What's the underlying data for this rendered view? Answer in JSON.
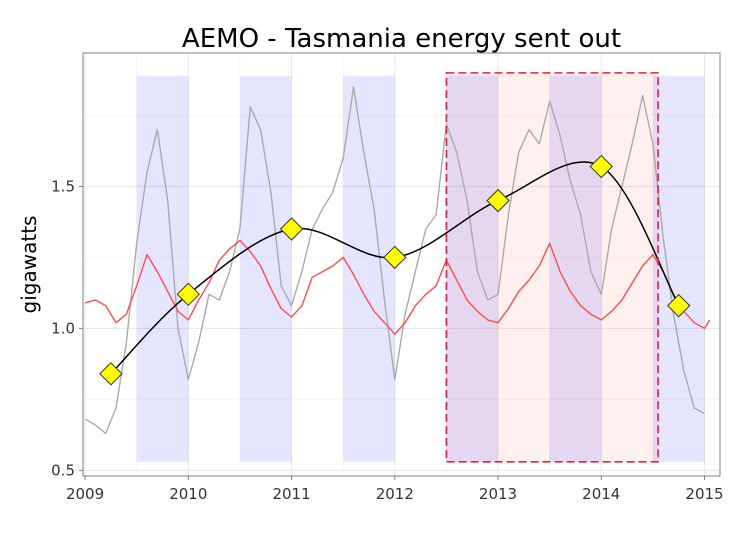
{
  "chart_data": {
    "type": "line",
    "title": "AEMO - Tasmania energy sent out",
    "xlabel": "",
    "ylabel": "gigawatts",
    "xlim": [
      2008.98,
      2015.15
    ],
    "ylim": [
      0.48,
      1.97
    ],
    "x_ticks": [
      2009,
      2010,
      2011,
      2012,
      2013,
      2014,
      2015
    ],
    "y_ticks": [
      0.5,
      1.0,
      1.5
    ],
    "y_tick_labels": [
      "0.5",
      "1.0",
      "1.5"
    ],
    "grid": true,
    "legend": "none",
    "shaded_periods": [
      {
        "start": 2009.5,
        "end": 2010.0
      },
      {
        "start": 2010.5,
        "end": 2011.0
      },
      {
        "start": 2011.5,
        "end": 2012.0
      },
      {
        "start": 2012.5,
        "end": 2013.0
      },
      {
        "start": 2013.5,
        "end": 2014.0
      },
      {
        "start": 2014.5,
        "end": 2015.0
      }
    ],
    "highlight_region": {
      "x": [
        2012.5,
        2014.55
      ],
      "y": [
        0.53,
        1.9
      ]
    },
    "series": [
      {
        "color": "#ff4d4d",
        "x": [
          2009.0,
          2009.1,
          2009.2,
          2009.3,
          2009.4,
          2009.5,
          2009.6,
          2009.7,
          2009.8,
          2009.9,
          2010.0,
          2010.1,
          2010.2,
          2010.3,
          2010.4,
          2010.5,
          2010.6,
          2010.7,
          2010.8,
          2010.9,
          2011.0,
          2011.1,
          2011.2,
          2011.3,
          2011.4,
          2011.5,
          2011.6,
          2011.7,
          2011.8,
          2011.9,
          2012.0,
          2012.1,
          2012.2,
          2012.3,
          2012.4,
          2012.5,
          2012.6,
          2012.7,
          2012.8,
          2012.9,
          2013.0,
          2013.1,
          2013.2,
          2013.3,
          2013.4,
          2013.5,
          2013.6,
          2013.7,
          2013.8,
          2013.9,
          2014.0,
          2014.1,
          2014.2,
          2014.3,
          2014.4,
          2014.5,
          2014.6,
          2014.7,
          2014.8,
          2014.9,
          2015.0,
          2015.05
        ],
        "values": [
          1.09,
          1.1,
          1.08,
          1.02,
          1.05,
          1.15,
          1.26,
          1.2,
          1.13,
          1.06,
          1.03,
          1.1,
          1.16,
          1.24,
          1.28,
          1.31,
          1.27,
          1.22,
          1.14,
          1.07,
          1.04,
          1.08,
          1.18,
          1.2,
          1.22,
          1.25,
          1.19,
          1.12,
          1.06,
          1.02,
          0.98,
          1.02,
          1.08,
          1.12,
          1.15,
          1.24,
          1.17,
          1.1,
          1.06,
          1.03,
          1.02,
          1.07,
          1.13,
          1.17,
          1.22,
          1.3,
          1.2,
          1.13,
          1.08,
          1.05,
          1.03,
          1.06,
          1.1,
          1.16,
          1.22,
          1.26,
          1.2,
          1.12,
          1.06,
          1.02,
          1.0,
          1.03
        ]
      },
      {
        "color": "#aaaaaa",
        "x": [
          2009.0,
          2009.1,
          2009.2,
          2009.3,
          2009.4,
          2009.5,
          2009.6,
          2009.7,
          2009.8,
          2009.9,
          2010.0,
          2010.1,
          2010.2,
          2010.3,
          2010.4,
          2010.5,
          2010.6,
          2010.7,
          2010.8,
          2010.9,
          2011.0,
          2011.1,
          2011.2,
          2011.3,
          2011.4,
          2011.5,
          2011.6,
          2011.7,
          2011.8,
          2011.9,
          2012.0,
          2012.1,
          2012.2,
          2012.3,
          2012.4,
          2012.5,
          2012.6,
          2012.7,
          2012.8,
          2012.9,
          2013.0,
          2013.1,
          2013.2,
          2013.3,
          2013.4,
          2013.5,
          2013.6,
          2013.7,
          2013.8,
          2013.9,
          2014.0,
          2014.1,
          2014.2,
          2014.3,
          2014.4,
          2014.5,
          2014.6,
          2014.7,
          2014.8,
          2014.9,
          2015.0
        ],
        "values": [
          0.68,
          0.66,
          0.63,
          0.72,
          0.95,
          1.3,
          1.55,
          1.7,
          1.45,
          1.0,
          0.82,
          0.95,
          1.12,
          1.1,
          1.2,
          1.35,
          1.78,
          1.7,
          1.48,
          1.15,
          1.08,
          1.2,
          1.35,
          1.42,
          1.48,
          1.6,
          1.85,
          1.62,
          1.42,
          1.1,
          0.82,
          1.05,
          1.2,
          1.35,
          1.4,
          1.72,
          1.62,
          1.45,
          1.2,
          1.1,
          1.12,
          1.4,
          1.62,
          1.7,
          1.65,
          1.8,
          1.68,
          1.52,
          1.4,
          1.2,
          1.12,
          1.35,
          1.5,
          1.65,
          1.82,
          1.65,
          1.32,
          1.05,
          0.85,
          0.72,
          0.7
        ]
      },
      {
        "color": "#000000",
        "x": [
          2009.25,
          2010.0,
          2011.0,
          2012.0,
          2013.0,
          2014.0,
          2014.75
        ],
        "values": [
          0.84,
          1.12,
          1.35,
          1.25,
          1.45,
          1.57,
          1.08
        ]
      }
    ]
  }
}
